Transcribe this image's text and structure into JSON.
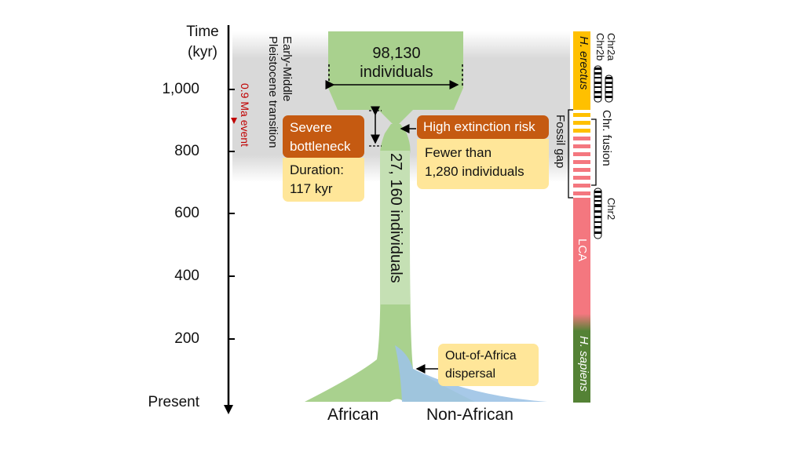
{
  "axis": {
    "title_line1": "Time",
    "title_line2": "(kyr)",
    "ticks": [
      "1,000",
      "800",
      "600",
      "400",
      "200",
      "Present"
    ]
  },
  "transition": {
    "line1": "Early-Middle",
    "line2": "Pleistocene transition"
  },
  "event": {
    "line1": "0.9",
    "line2": "Ma event",
    "color": "#c00000"
  },
  "population": {
    "ancestral": {
      "line1": "98,130",
      "line2": "individuals"
    },
    "bottleneck_size": "27, 160 individuals"
  },
  "bottleneck_box": {
    "header_line1": "Severe",
    "header_line2": "bottleneck",
    "body_line1": "Duration:",
    "body_line2": "117 kyr"
  },
  "risk_box": {
    "header": "High extinction risk",
    "body_line1": "Fewer than",
    "body_line2": "1,280 individuals"
  },
  "dispersal": {
    "line1": "Out-of-Africa",
    "line2": "dispersal"
  },
  "groups": {
    "african": "African",
    "non_african": "Non-African"
  },
  "timeline": {
    "h_erectus": "H. erectus",
    "lca": "LCA",
    "h_sapiens": "H. sapiens",
    "fossil_gap": "Fossil gap",
    "chr_fusion": "Chr. fusion",
    "chr2a": "Chr2a",
    "chr2b": "Chr2b",
    "chr2": "Chr2"
  },
  "colors": {
    "population_green": "#a9d18e",
    "non_african_blue": "#9dc3e6",
    "header_orange": "#c55a11",
    "box_yellow": "#ffe699",
    "erectus_yellow": "#ffc000",
    "lca_red": "#f4777f",
    "sapiens_green": "#548235",
    "gray_band": "#d9d9d9"
  }
}
